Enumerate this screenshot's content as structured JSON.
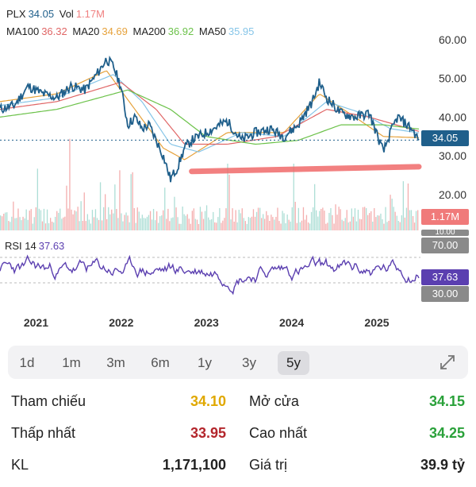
{
  "header": {
    "symbol": "PLX",
    "price": "34.05",
    "vol_label": "Vol",
    "vol": "1.17M",
    "ma": [
      {
        "label": "MA100",
        "value": "36.32",
        "color": "#e06666"
      },
      {
        "label": "MA20",
        "value": "34.69",
        "color": "#e6a23c"
      },
      {
        "label": "MA200",
        "value": "36.92",
        "color": "#6cc24a"
      },
      {
        "label": "MA50",
        "value": "35.95",
        "color": "#86c5e8"
      }
    ]
  },
  "rsi": {
    "label": "RSI 14",
    "value": "37.63",
    "upper": "70.00",
    "lower": "30.00"
  },
  "chart_data": {
    "type": "line",
    "title": "",
    "y_ticks": [
      "60.00",
      "50.00",
      "40.00",
      "30.00",
      "20.00"
    ],
    "ylim": [
      20,
      62
    ],
    "x_ticks": [
      "2021",
      "2022",
      "2023",
      "2024",
      "2025"
    ],
    "x_range": [
      "2020-10",
      "2025-09"
    ],
    "current_price": 34.05,
    "current_volume": "1.17M",
    "volume_cap_label": "10.00",
    "series": [
      {
        "name": "PLX",
        "color": "#1f5f8b",
        "x": [
          "2020-10",
          "2020-12",
          "2021-02",
          "2021-04",
          "2021-06",
          "2021-08",
          "2021-10",
          "2021-12",
          "2022-01",
          "2022-02",
          "2022-03",
          "2022-04",
          "2022-05",
          "2022-06",
          "2022-07",
          "2022-08",
          "2022-09",
          "2022-10",
          "2022-11",
          "2022-12",
          "2023-01",
          "2023-02",
          "2023-04",
          "2023-06",
          "2023-08",
          "2023-10",
          "2023-12",
          "2024-02",
          "2024-04",
          "2024-06",
          "2024-07",
          "2024-08",
          "2024-10",
          "2024-12",
          "2025-02",
          "2025-04",
          "2025-05",
          "2025-06",
          "2025-08",
          "2025-09"
        ],
        "values": [
          42,
          43,
          48,
          46,
          45,
          48,
          47,
          52,
          55,
          53,
          48,
          38,
          40,
          37,
          38,
          34,
          30,
          24,
          27,
          32,
          34,
          35,
          37,
          39,
          34,
          36,
          37,
          35,
          38,
          44,
          49,
          45,
          41,
          40,
          41,
          31,
          36,
          40,
          37,
          34.05
        ]
      },
      {
        "name": "MA20",
        "color": "#e6a23c",
        "x": [
          "2020-10",
          "2021-06",
          "2022-01",
          "2022-05",
          "2022-09",
          "2022-12",
          "2023-06",
          "2024-02",
          "2024-07",
          "2024-12",
          "2025-04",
          "2025-09"
        ],
        "values": [
          44,
          46,
          52,
          42,
          32,
          29,
          36,
          36,
          46,
          40,
          35,
          34.69
        ]
      },
      {
        "name": "MA50",
        "color": "#86c5e8",
        "x": [
          "2020-10",
          "2021-06",
          "2022-02",
          "2022-06",
          "2022-10",
          "2023-02",
          "2023-08",
          "2024-02",
          "2024-08",
          "2025-01",
          "2025-05",
          "2025-09"
        ],
        "values": [
          43,
          45,
          51,
          44,
          33,
          31,
          36,
          35,
          44,
          41,
          37,
          35.95
        ]
      },
      {
        "name": "MA100",
        "color": "#e06666",
        "x": [
          "2020-10",
          "2021-06",
          "2022-03",
          "2022-08",
          "2022-12",
          "2023-06",
          "2024-01",
          "2024-08",
          "2025-02",
          "2025-09"
        ],
        "values": [
          42,
          44,
          49,
          42,
          33,
          33,
          35,
          42,
          40,
          36.32
        ]
      },
      {
        "name": "MA200",
        "color": "#6cc24a",
        "x": [
          "2020-10",
          "2021-06",
          "2022-04",
          "2022-10",
          "2023-03",
          "2023-10",
          "2024-04",
          "2024-10",
          "2025-04",
          "2025-09"
        ],
        "values": [
          40,
          42,
          47,
          42,
          35,
          33,
          34,
          38,
          38,
          36.92
        ]
      }
    ],
    "support_line": {
      "color": "#f06a6a",
      "x": [
        "2023-01",
        "2025-09"
      ],
      "values": [
        26,
        27.2
      ]
    },
    "rsi_series": {
      "name": "RSI 14",
      "color": "#5b3fb0",
      "ylim": [
        0,
        100
      ],
      "upper": 70,
      "lower": 30,
      "current": 37.63
    }
  },
  "tabs": {
    "items": [
      "1d",
      "1m",
      "3m",
      "6m",
      "1y",
      "3y",
      "5y"
    ],
    "active": "5y"
  },
  "stats": {
    "rows": [
      {
        "l1": "Tham chiếu",
        "v1": "34.10",
        "c1": "#e0a800",
        "l2": "Mở cửa",
        "v2": "34.15",
        "c2": "#2aa13a"
      },
      {
        "l1": "Thấp nhất",
        "v1": "33.95",
        "c1": "#b3262c",
        "l2": "Cao nhất",
        "v2": "34.25",
        "c2": "#2aa13a"
      },
      {
        "l1": "KL",
        "v1": "1,171,100",
        "c1": "#222222",
        "l2": "Giá trị",
        "v2": "39.9 tỷ",
        "c2": "#222222"
      }
    ]
  }
}
